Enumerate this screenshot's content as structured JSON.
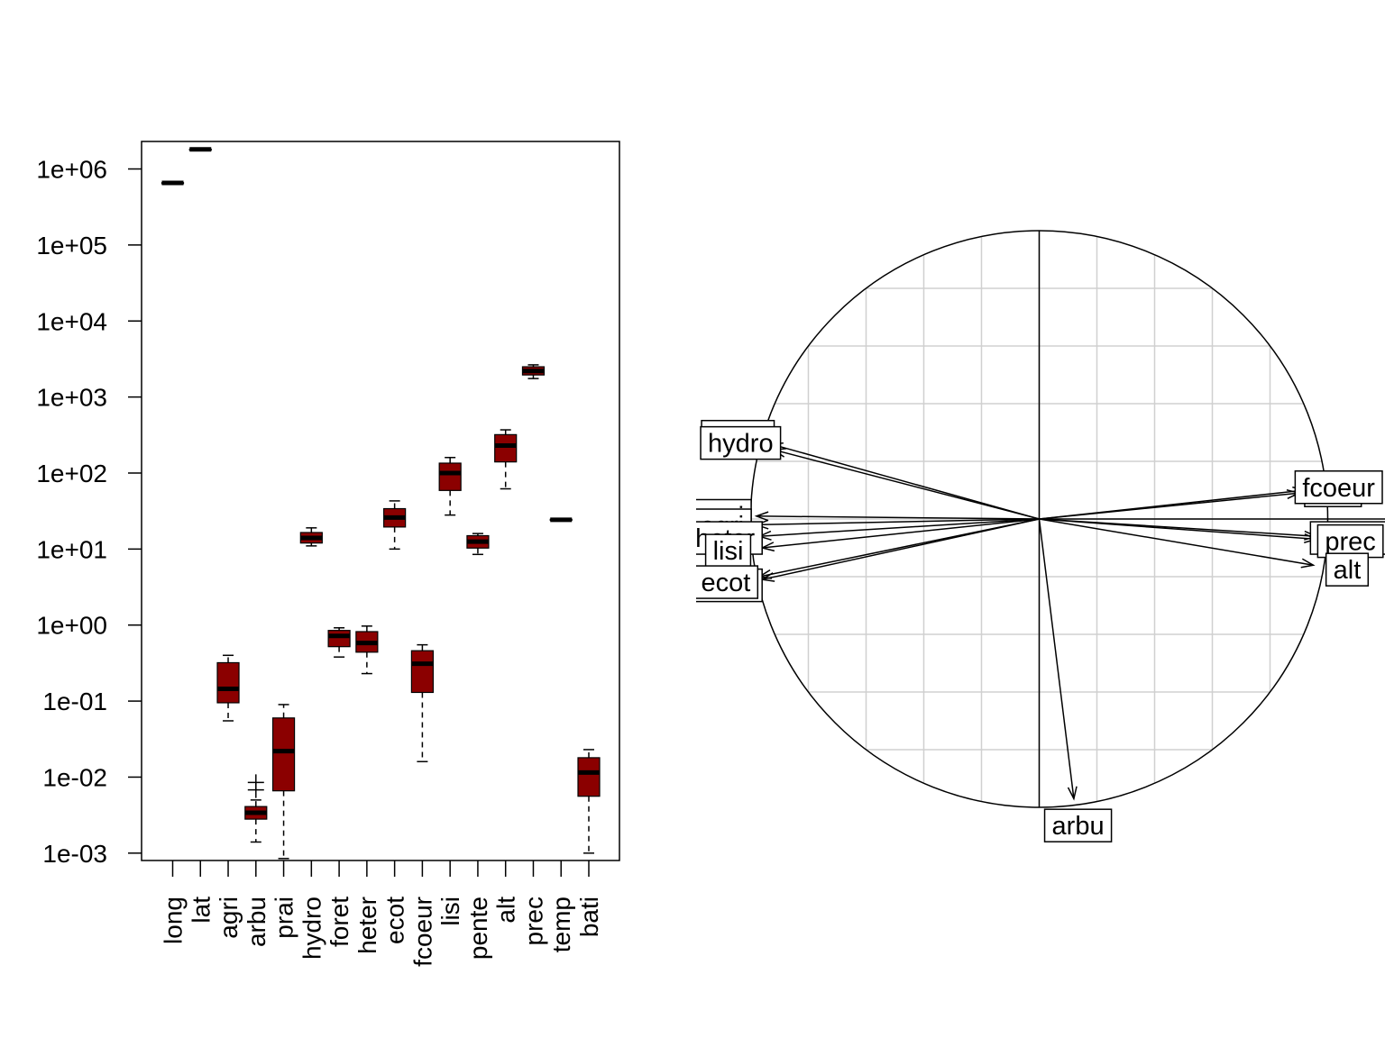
{
  "colors": {
    "box_fill": "#8b0000",
    "box_border": "#000000",
    "grid": "#d0d0d0",
    "axis": "#000000"
  },
  "chart_data": [
    {
      "type": "boxplot",
      "yscale": "log10",
      "ylim": [
        0.0008,
        2300000
      ],
      "ytick_labels": [
        "1e-03",
        "1e-02",
        "1e-01",
        "1e+00",
        "1e+01",
        "1e+02",
        "1e+03",
        "1e+04",
        "1e+05",
        "1e+06"
      ],
      "ytick_values": [
        0.001,
        0.01,
        0.1,
        1,
        10,
        100,
        1000,
        10000,
        100000,
        1000000
      ],
      "categories": [
        "long",
        "lat",
        "agri",
        "arbu",
        "prai",
        "hydro",
        "foret",
        "heter",
        "ecot",
        "fcoeur",
        "lisi",
        "pente",
        "alt",
        "prec",
        "temp",
        "bati"
      ],
      "boxes": [
        {
          "min": 640000,
          "q1": 650000,
          "median": 655000,
          "q3": 660000,
          "max": 670000,
          "outliers": []
        },
        {
          "min": 1790000,
          "q1": 1800000,
          "median": 1810000,
          "q3": 1820000,
          "max": 1830000,
          "outliers": []
        },
        {
          "min": 0.055,
          "q1": 0.095,
          "median": 0.145,
          "q3": 0.32,
          "max": 0.4,
          "outliers": []
        },
        {
          "min": 0.0014,
          "q1": 0.0028,
          "median": 0.0034,
          "q3": 0.0041,
          "max": 0.005,
          "outliers": [
            0.0068,
            0.0085
          ]
        },
        {
          "min": 0.00085,
          "q1": 0.0066,
          "median": 0.022,
          "q3": 0.06,
          "max": 0.09,
          "outliers": []
        },
        {
          "min": 11,
          "q1": 12,
          "median": 14,
          "q3": 16.5,
          "max": 19,
          "outliers": []
        },
        {
          "min": 0.38,
          "q1": 0.52,
          "median": 0.72,
          "q3": 0.85,
          "max": 0.92,
          "outliers": []
        },
        {
          "min": 0.23,
          "q1": 0.44,
          "median": 0.58,
          "q3": 0.82,
          "max": 0.97,
          "outliers": []
        },
        {
          "min": 10,
          "q1": 19.5,
          "median": 26,
          "q3": 34,
          "max": 43,
          "outliers": []
        },
        {
          "min": 0.016,
          "q1": 0.13,
          "median": 0.31,
          "q3": 0.46,
          "max": 0.55,
          "outliers": []
        },
        {
          "min": 28,
          "q1": 59,
          "median": 100,
          "q3": 135,
          "max": 160,
          "outliers": []
        },
        {
          "min": 8.5,
          "q1": 10.3,
          "median": 12.5,
          "q3": 15,
          "max": 16,
          "outliers": []
        },
        {
          "min": 62,
          "q1": 140,
          "median": 230,
          "q3": 320,
          "max": 370,
          "outliers": []
        },
        {
          "min": 1750,
          "q1": 1950,
          "median": 2200,
          "q3": 2500,
          "max": 2650,
          "outliers": []
        },
        {
          "min": 23.5,
          "q1": 24,
          "median": 24.3,
          "q3": 24.6,
          "max": 25,
          "outliers": []
        },
        {
          "min": 0.001,
          "q1": 0.0056,
          "median": 0.0115,
          "q3": 0.018,
          "max": 0.023,
          "outliers": []
        }
      ]
    },
    {
      "type": "correlation_circle",
      "xlim": [
        -1,
        1
      ],
      "ylim": [
        -1,
        1
      ],
      "grid": true,
      "variables": [
        {
          "name": "temp",
          "x": -0.93,
          "y": 0.26
        },
        {
          "name": "hydro",
          "x": -0.92,
          "y": 0.24
        },
        {
          "name": "prai",
          "x": -0.98,
          "y": 0.01
        },
        {
          "name": "agri",
          "x": -0.98,
          "y": -0.02
        },
        {
          "name": "heter",
          "x": -0.97,
          "y": -0.06
        },
        {
          "name": "lisi",
          "x": -0.96,
          "y": -0.1
        },
        {
          "name": "foret",
          "x": -0.96,
          "y": -0.21
        },
        {
          "name": "ecot",
          "x": -0.97,
          "y": -0.2
        },
        {
          "name": "arbu",
          "x": 0.12,
          "y": -0.97
        },
        {
          "name": "bati",
          "x": 0.9,
          "y": 0.09
        },
        {
          "name": "fcoeur",
          "x": 0.92,
          "y": 0.1
        },
        {
          "name": "pente",
          "x": 0.96,
          "y": -0.06
        },
        {
          "name": "prec",
          "x": 0.96,
          "y": -0.07
        },
        {
          "name": "alt",
          "x": 0.95,
          "y": -0.16
        }
      ]
    }
  ]
}
